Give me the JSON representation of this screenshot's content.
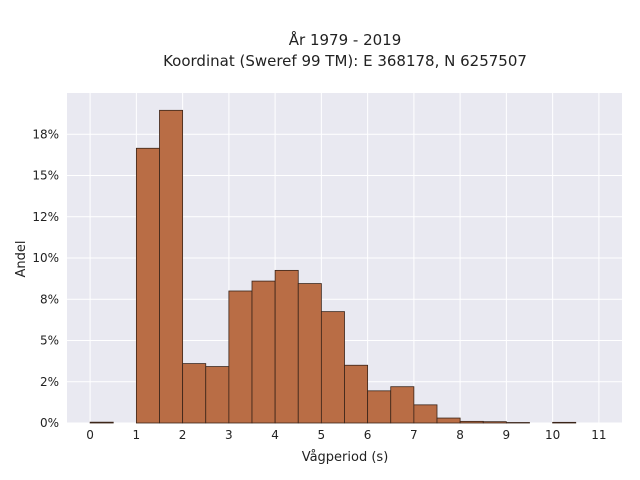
{
  "chart_data": {
    "type": "bar",
    "title_line1": "År 1979 - 2019",
    "title_line2": "Koordinat (Sweref 99 TM): E 368178, N 6257507",
    "xlabel": "Vågperiod (s)",
    "ylabel": "Andel",
    "xlim": [
      -0.5,
      11.5
    ],
    "ylim": [
      0,
      0.2
    ],
    "x_ticks": [
      "0",
      "1",
      "2",
      "3",
      "4",
      "5",
      "6",
      "7",
      "8",
      "9",
      "10",
      "11"
    ],
    "y_ticks": [
      {
        "value": 0,
        "label": "0%"
      },
      {
        "value": 0.025,
        "label": "2%"
      },
      {
        "value": 0.05,
        "label": "5%"
      },
      {
        "value": 0.075,
        "label": "8%"
      },
      {
        "value": 0.1,
        "label": "10%"
      },
      {
        "value": 0.125,
        "label": "12%"
      },
      {
        "value": 0.15,
        "label": "15%"
      },
      {
        "value": 0.175,
        "label": "18%"
      }
    ],
    "bin_width": 0.5,
    "bins": [
      {
        "start": 0.0,
        "value": 0.0005
      },
      {
        "start": 1.0,
        "value": 0.1665
      },
      {
        "start": 1.5,
        "value": 0.1895
      },
      {
        "start": 2.0,
        "value": 0.036
      },
      {
        "start": 2.5,
        "value": 0.0342
      },
      {
        "start": 3.0,
        "value": 0.08
      },
      {
        "start": 3.5,
        "value": 0.086
      },
      {
        "start": 4.0,
        "value": 0.0925
      },
      {
        "start": 4.5,
        "value": 0.0845
      },
      {
        "start": 5.0,
        "value": 0.0675
      },
      {
        "start": 5.5,
        "value": 0.035
      },
      {
        "start": 6.0,
        "value": 0.0195
      },
      {
        "start": 6.5,
        "value": 0.022
      },
      {
        "start": 7.0,
        "value": 0.011
      },
      {
        "start": 7.5,
        "value": 0.003
      },
      {
        "start": 8.0,
        "value": 0.001
      },
      {
        "start": 8.5,
        "value": 0.0008
      },
      {
        "start": 9.0,
        "value": 0.0003
      },
      {
        "start": 10.0,
        "value": 0.0004
      }
    ],
    "bar_color": "#b96d45",
    "bar_edge_color": "#3a2418",
    "plot_background": "#e9e9f1",
    "grid": true,
    "grid_color": "#ffffff"
  }
}
